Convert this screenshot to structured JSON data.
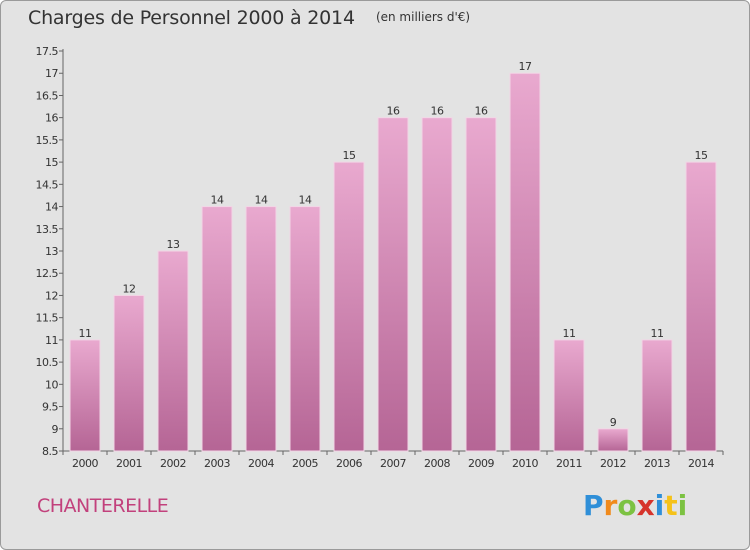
{
  "header": {
    "title": "Charges de Personnel 2000 à 2014",
    "subtitle": "(en milliers d'€)"
  },
  "footer": {
    "commune": "CHANTERELLE",
    "logo": {
      "letters": [
        "P",
        "r",
        "o",
        "x",
        "i",
        "t",
        "i"
      ],
      "colors": [
        "#2f8fd8",
        "#f08a1c",
        "#7cc242",
        "#d6332b",
        "#2f8fd8",
        "#f5c21a",
        "#7cc242"
      ]
    }
  },
  "colors": {
    "bar_top": "#e9a9cf",
    "bar_bottom": "#b56595",
    "background": "#e3e3e3",
    "commune_text": "#c2417c"
  },
  "chart_data": {
    "type": "bar",
    "categories": [
      "2000",
      "2001",
      "2002",
      "2003",
      "2004",
      "2005",
      "2006",
      "2007",
      "2008",
      "2009",
      "2010",
      "2011",
      "2012",
      "2013",
      "2014"
    ],
    "values": [
      11,
      12,
      13,
      14,
      14,
      14,
      15,
      16,
      16,
      16,
      17,
      11,
      9,
      11,
      15
    ],
    "data_labels": [
      "11",
      "12",
      "13",
      "14",
      "14",
      "14",
      "15",
      "16",
      "16",
      "16",
      "17",
      "11",
      "9",
      "11",
      "15"
    ],
    "ylim": [
      8.5,
      17.5
    ],
    "yticks": [
      8.5,
      9,
      9.5,
      10,
      10.5,
      11,
      11.5,
      12,
      12.5,
      13,
      13.5,
      14,
      14.5,
      15,
      15.5,
      16,
      16.5,
      17,
      17.5
    ],
    "ytick_labels": [
      "8.5",
      "9",
      "9.5",
      "10",
      "10.5",
      "11",
      "11.5",
      "12",
      "12.5",
      "13",
      "13.5",
      "14",
      "14.5",
      "15",
      "15.5",
      "16",
      "16.5",
      "17",
      "17.5"
    ],
    "xlabel": "",
    "ylabel": "",
    "grid": false,
    "legend": "none"
  }
}
